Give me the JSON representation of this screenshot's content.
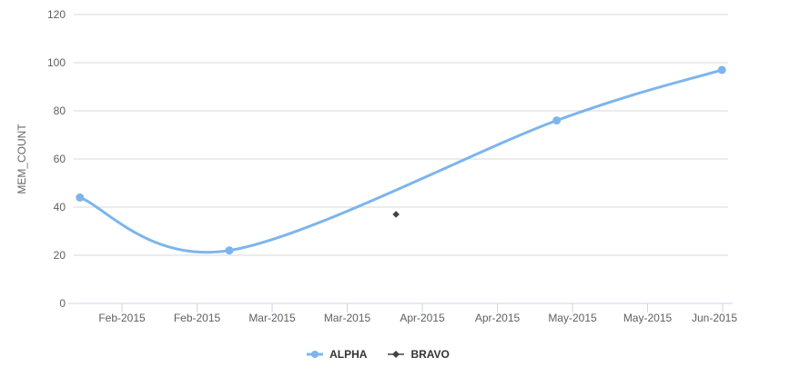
{
  "chart_data": {
    "type": "line",
    "title": "",
    "xlabel": "",
    "ylabel": "MEM_COUNT",
    "ylim": [
      0,
      120
    ],
    "yticks": [
      0,
      20,
      40,
      60,
      80,
      100,
      120
    ],
    "xticklabels": [
      "Feb-2015",
      "Feb-2015",
      "Mar-2015",
      "Mar-2015",
      "Apr-2015",
      "Apr-2015",
      "May-2015",
      "May-2015",
      "Jun-2015"
    ],
    "x_unit": "tick-index (0 = first x tick, 8 = last x tick)",
    "grid": true,
    "legend_position": "bottom-center",
    "series": [
      {
        "name": "ALPHA",
        "type": "spline",
        "color": "#7cb5ec",
        "marker": "circle",
        "points": [
          {
            "x": -0.56,
            "y": 44
          },
          {
            "x": 1.43,
            "y": 22
          },
          {
            "x": 5.79,
            "y": 76
          },
          {
            "x": 7.99,
            "y": 97
          }
        ]
      },
      {
        "name": "BRAVO",
        "type": "scatter",
        "color": "#434348",
        "marker": "diamond",
        "points": [
          {
            "x": 3.65,
            "y": 37
          }
        ]
      }
    ],
    "style": {
      "grid_color": "#d8d8d8",
      "axis_line_color": "#ccd6eb",
      "tick_label_color": "#606060",
      "axis_title_color": "#666666",
      "legend_text_color": "#333333",
      "background": "#ffffff"
    }
  }
}
